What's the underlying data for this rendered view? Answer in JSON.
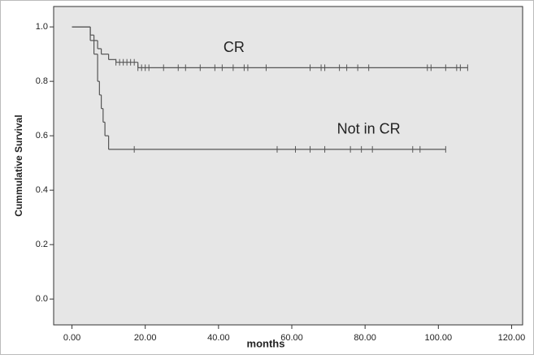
{
  "chart_data": {
    "type": "step",
    "xlabel": "months",
    "ylabel": "Cummulative Survival",
    "xlim": [
      -5,
      123
    ],
    "ylim": [
      -0.095,
      1.075
    ],
    "xticks": [
      {
        "value": 0,
        "label": "0.00"
      },
      {
        "value": 20,
        "label": "20.00"
      },
      {
        "value": 40,
        "label": "40.00"
      },
      {
        "value": 60,
        "label": "60.00"
      },
      {
        "value": 80,
        "label": "80.00"
      },
      {
        "value": 100,
        "label": "100.00"
      },
      {
        "value": 120,
        "label": "120.00"
      }
    ],
    "yticks": [
      {
        "value": 0,
        "label": "0.0"
      },
      0.2,
      0.4,
      0.6,
      0.8,
      {
        "value": 1,
        "label": "1.0"
      }
    ],
    "background": "#e6e6e6",
    "color": "#555555",
    "series": [
      {
        "name": "CR",
        "x": [
          0,
          5,
          6,
          7,
          8,
          10,
          12,
          18,
          108
        ],
        "values": [
          1.0,
          0.97,
          0.95,
          0.92,
          0.9,
          0.88,
          0.87,
          0.85,
          0.85
        ],
        "censored_x": [
          12,
          13,
          14,
          15,
          16,
          17,
          18,
          19,
          20,
          21,
          25,
          29,
          31,
          35,
          39,
          41,
          44,
          47,
          48,
          53,
          65,
          68,
          69,
          73,
          75,
          78,
          81,
          97,
          98,
          102,
          105,
          106,
          108
        ],
        "censored_values": [
          0.87,
          0.87,
          0.87,
          0.87,
          0.87,
          0.87,
          0.85,
          0.85,
          0.85,
          0.85,
          0.85,
          0.85,
          0.85,
          0.85,
          0.85,
          0.85,
          0.85,
          0.85,
          0.85,
          0.85,
          0.85,
          0.85,
          0.85,
          0.85,
          0.85,
          0.85,
          0.85,
          0.85,
          0.85,
          0.85,
          0.85,
          0.85,
          0.85
        ]
      },
      {
        "name": "Not in CR",
        "x": [
          0,
          5,
          6,
          7,
          7.5,
          8,
          8.5,
          9,
          10,
          102
        ],
        "values": [
          1.0,
          0.95,
          0.9,
          0.8,
          0.75,
          0.7,
          0.65,
          0.6,
          0.55,
          0.55
        ],
        "censored_x": [
          17,
          56,
          61,
          65,
          69,
          76,
          79,
          82,
          93,
          95,
          102
        ],
        "censored_values": [
          0.55,
          0.55,
          0.55,
          0.55,
          0.55,
          0.55,
          0.55,
          0.55,
          0.55,
          0.55,
          0.55
        ]
      }
    ]
  }
}
